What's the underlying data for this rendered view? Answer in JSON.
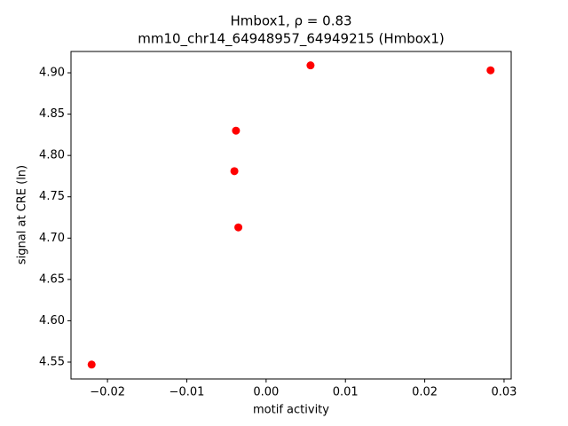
{
  "chart_data": {
    "type": "scatter",
    "title": "Hmbox1, ρ = 0.83",
    "subtitle": "mm10_chr14_64948957_64949215 (Hmbox1)",
    "x_label": "motif activity",
    "y_label": "signal at CRE (ln)",
    "x": [
      -0.022,
      0.0056,
      0.0283,
      -0.0038,
      -0.004,
      -0.0035
    ],
    "y": [
      4.547,
      4.909,
      4.903,
      4.83,
      4.781,
      4.713
    ],
    "color": "#ff0000",
    "xlim": [
      -0.0246,
      0.0309
    ],
    "ylim": [
      4.5296,
      4.9258
    ],
    "xticks": [
      {
        "value": -0.02,
        "label": "−0.02"
      },
      {
        "value": -0.01,
        "label": "−0.01"
      },
      {
        "value": 0,
        "label": "0.00"
      },
      0.01,
      0.02,
      0.03
    ],
    "yticks": [
      4.55,
      {
        "value": 4.6,
        "label": "4.60"
      },
      4.65,
      {
        "value": 4.7,
        "label": "4.70"
      },
      4.75,
      {
        "value": 4.8,
        "label": "4.80"
      },
      4.85,
      {
        "value": 4.9,
        "label": "4.90"
      }
    ],
    "grid": false
  }
}
